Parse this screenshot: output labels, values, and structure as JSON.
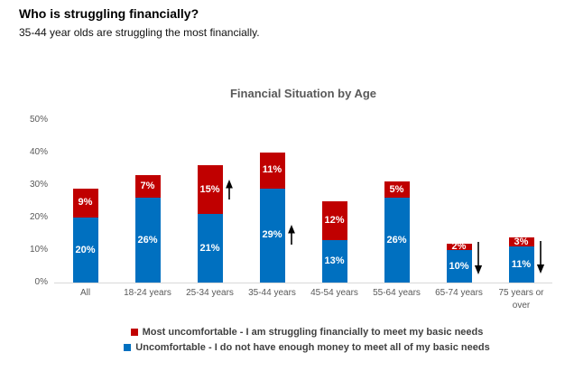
{
  "header": {
    "title": "Who is struggling financially?",
    "subtitle": "35-44 year olds are struggling the most financially."
  },
  "chart_data": {
    "type": "bar",
    "stacked": true,
    "title": "Financial Situation by Age",
    "categories": [
      "All",
      "18-24 years",
      "25-34 years",
      "35-44 years",
      "45-54 years",
      "55-64 years",
      "65-74 years",
      "75 years or over"
    ],
    "series": [
      {
        "name": "Uncomfortable - I do not have enough money to meet all of my basic needs",
        "color": "#0070C0",
        "values": [
          20,
          26,
          21,
          29,
          13,
          26,
          10,
          11
        ]
      },
      {
        "name": "Most uncomfortable - I am struggling financially to meet my basic needs",
        "color": "#C00000",
        "values": [
          9,
          7,
          15,
          11,
          12,
          5,
          2,
          3
        ]
      }
    ],
    "value_suffix": "%",
    "ylim": [
      0,
      50
    ],
    "yticks": [
      "0%",
      "10%",
      "20%",
      "30%",
      "40%",
      "50%"
    ],
    "grid": false,
    "legend_position": "bottom",
    "legend_order": [
      1,
      0
    ],
    "arrow_color": "#000000",
    "annotations": [
      {
        "category": "25-34 years",
        "direction": "up",
        "center_pct": 28.5
      },
      {
        "category": "35-44 years",
        "direction": "up",
        "center_pct": 14.5
      },
      {
        "category": "65-74 years",
        "direction": "down",
        "center_pct": 7.6
      },
      {
        "category": "75 years or over",
        "direction": "down",
        "center_pct": 7.8
      }
    ]
  }
}
